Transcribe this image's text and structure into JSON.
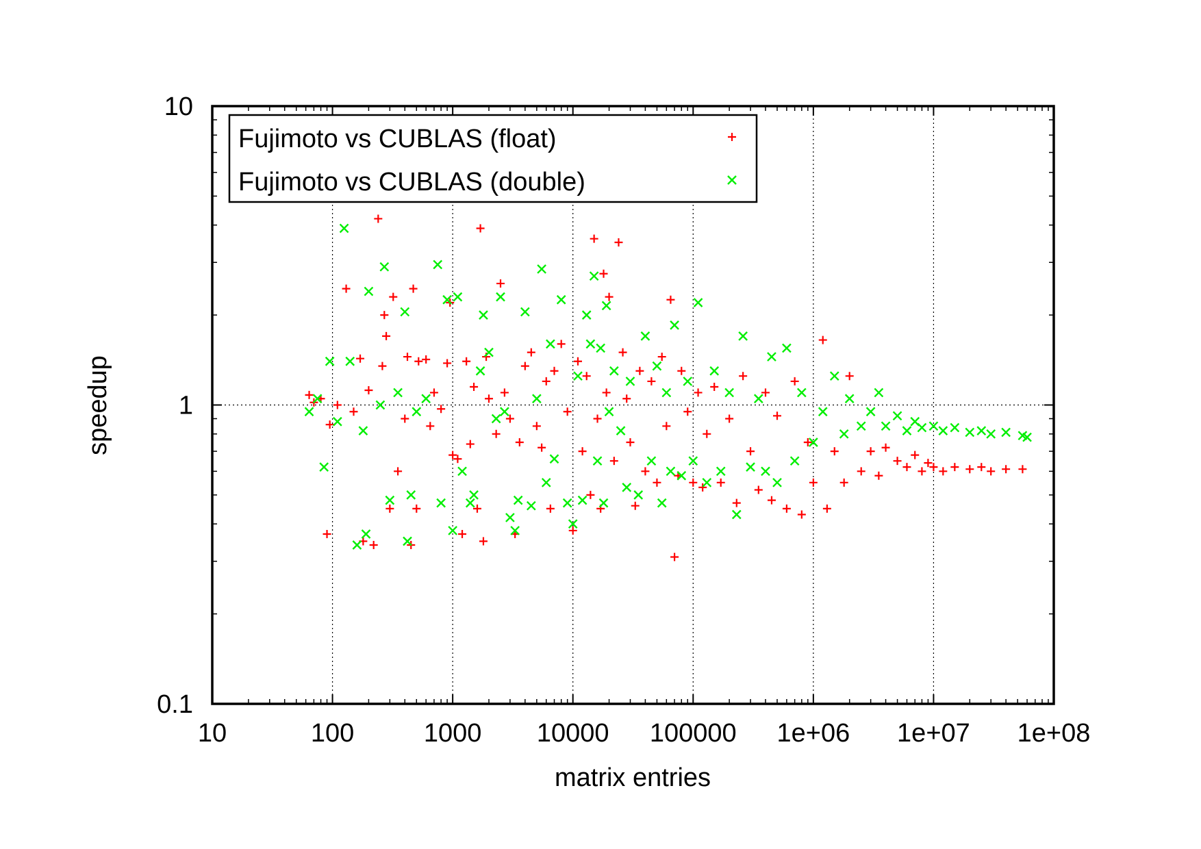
{
  "chart_data": {
    "type": "scatter",
    "title": "",
    "xlabel": "matrix entries",
    "ylabel": "speedup",
    "xscale": "log",
    "yscale": "log",
    "xlim": [
      10,
      100000000
    ],
    "ylim": [
      0.1,
      10
    ],
    "x_tick_labels": [
      "10",
      "100",
      "1000",
      "10000",
      "100000",
      "1e+06",
      "1e+07",
      "1e+08"
    ],
    "x_tick_values": [
      10,
      100,
      1000,
      10000,
      100000,
      1000000,
      10000000,
      100000000
    ],
    "y_tick_labels": [
      "0.1",
      "1",
      "10"
    ],
    "y_tick_values": [
      0.1,
      1,
      10
    ],
    "grid": "dotted lines at major ticks",
    "legend_position": "top-left",
    "series": [
      {
        "name": "Fujimoto vs CUBLAS (float)",
        "marker": "plus",
        "color": "#ff0000",
        "points": [
          [
            64,
            1.08
          ],
          [
            70,
            1.02
          ],
          [
            80,
            1.05
          ],
          [
            90,
            0.37
          ],
          [
            95,
            0.86
          ],
          [
            110,
            1.0
          ],
          [
            130,
            2.45
          ],
          [
            150,
            0.95
          ],
          [
            170,
            1.43
          ],
          [
            180,
            0.35
          ],
          [
            200,
            1.12
          ],
          [
            220,
            0.34
          ],
          [
            240,
            4.2
          ],
          [
            260,
            1.35
          ],
          [
            270,
            2.0
          ],
          [
            280,
            1.7
          ],
          [
            300,
            0.45
          ],
          [
            320,
            2.3
          ],
          [
            350,
            0.6
          ],
          [
            400,
            0.9
          ],
          [
            420,
            1.45
          ],
          [
            450,
            0.34
          ],
          [
            470,
            2.45
          ],
          [
            500,
            0.45
          ],
          [
            520,
            1.4
          ],
          [
            600,
            1.42
          ],
          [
            650,
            0.85
          ],
          [
            700,
            1.1
          ],
          [
            800,
            0.97
          ],
          [
            900,
            1.38
          ],
          [
            950,
            2.2
          ],
          [
            1000,
            0.68
          ],
          [
            1100,
            0.66
          ],
          [
            1200,
            0.37
          ],
          [
            1300,
            1.4
          ],
          [
            1400,
            0.74
          ],
          [
            1500,
            1.15
          ],
          [
            1600,
            0.45
          ],
          [
            1700,
            3.9
          ],
          [
            1800,
            0.35
          ],
          [
            1900,
            1.45
          ],
          [
            2000,
            1.05
          ],
          [
            2300,
            0.8
          ],
          [
            2500,
            2.55
          ],
          [
            2700,
            1.1
          ],
          [
            3000,
            0.9
          ],
          [
            3300,
            0.37
          ],
          [
            3600,
            0.75
          ],
          [
            4000,
            1.35
          ],
          [
            4500,
            1.5
          ],
          [
            5000,
            0.85
          ],
          [
            5500,
            0.72
          ],
          [
            6000,
            1.2
          ],
          [
            6500,
            0.45
          ],
          [
            7000,
            1.3
          ],
          [
            8000,
            1.6
          ],
          [
            9000,
            0.95
          ],
          [
            10000,
            0.38
          ],
          [
            11000,
            1.4
          ],
          [
            12000,
            0.7
          ],
          [
            13000,
            1.25
          ],
          [
            14000,
            0.5
          ],
          [
            15000,
            3.6
          ],
          [
            16000,
            0.9
          ],
          [
            17000,
            0.45
          ],
          [
            18000,
            2.75
          ],
          [
            19000,
            1.1
          ],
          [
            20000,
            2.3
          ],
          [
            22000,
            0.65
          ],
          [
            24000,
            3.5
          ],
          [
            26000,
            1.5
          ],
          [
            28000,
            1.05
          ],
          [
            30000,
            0.75
          ],
          [
            33000,
            0.46
          ],
          [
            36000,
            1.3
          ],
          [
            40000,
            0.6
          ],
          [
            45000,
            1.2
          ],
          [
            50000,
            0.55
          ],
          [
            55000,
            1.45
          ],
          [
            60000,
            0.85
          ],
          [
            65000,
            2.25
          ],
          [
            70000,
            0.31
          ],
          [
            75000,
            0.58
          ],
          [
            80000,
            1.3
          ],
          [
            90000,
            0.95
          ],
          [
            100000,
            0.55
          ],
          [
            110000,
            1.1
          ],
          [
            120000,
            0.53
          ],
          [
            130000,
            0.8
          ],
          [
            150000,
            1.15
          ],
          [
            170000,
            0.55
          ],
          [
            200000,
            0.9
          ],
          [
            230000,
            0.47
          ],
          [
            260000,
            1.25
          ],
          [
            300000,
            0.7
          ],
          [
            350000,
            0.52
          ],
          [
            400000,
            1.1
          ],
          [
            450000,
            0.48
          ],
          [
            500000,
            0.92
          ],
          [
            600000,
            0.45
          ],
          [
            700000,
            1.2
          ],
          [
            800000,
            0.43
          ],
          [
            900000,
            0.75
          ],
          [
            1000000,
            0.55
          ],
          [
            1200000,
            1.65
          ],
          [
            1300000,
            0.45
          ],
          [
            1500000,
            0.7
          ],
          [
            1800000,
            0.55
          ],
          [
            2000000,
            1.25
          ],
          [
            2500000,
            0.6
          ],
          [
            3000000,
            0.7
          ],
          [
            3500000,
            0.58
          ],
          [
            4000000,
            0.72
          ],
          [
            5000000,
            0.65
          ],
          [
            6000000,
            0.62
          ],
          [
            7000000,
            0.68
          ],
          [
            8000000,
            0.6
          ],
          [
            9000000,
            0.64
          ],
          [
            10000000,
            0.62
          ],
          [
            12000000,
            0.6
          ],
          [
            15000000,
            0.62
          ],
          [
            20000000,
            0.61
          ],
          [
            25000000,
            0.62
          ],
          [
            30000000,
            0.6
          ],
          [
            40000000,
            0.61
          ],
          [
            55000000,
            0.61
          ]
        ]
      },
      {
        "name": "Fujimoto vs CUBLAS (double)",
        "marker": "cross",
        "color": "#00ee00",
        "points": [
          [
            64,
            0.95
          ],
          [
            75,
            1.05
          ],
          [
            85,
            0.62
          ],
          [
            95,
            1.4
          ],
          [
            110,
            0.88
          ],
          [
            125,
            3.9
          ],
          [
            140,
            1.4
          ],
          [
            160,
            0.34
          ],
          [
            180,
            0.82
          ],
          [
            190,
            0.37
          ],
          [
            200,
            2.4
          ],
          [
            250,
            1.0
          ],
          [
            270,
            2.9
          ],
          [
            300,
            0.48
          ],
          [
            350,
            1.1
          ],
          [
            400,
            2.05
          ],
          [
            420,
            0.35
          ],
          [
            450,
            0.5
          ],
          [
            500,
            0.95
          ],
          [
            600,
            1.05
          ],
          [
            750,
            2.95
          ],
          [
            800,
            0.47
          ],
          [
            900,
            2.25
          ],
          [
            1000,
            0.38
          ],
          [
            1100,
            2.3
          ],
          [
            1200,
            0.6
          ],
          [
            1400,
            0.47
          ],
          [
            1500,
            0.5
          ],
          [
            1700,
            1.3
          ],
          [
            1800,
            2.0
          ],
          [
            2000,
            1.5
          ],
          [
            2300,
            0.9
          ],
          [
            2500,
            2.3
          ],
          [
            2700,
            0.95
          ],
          [
            3000,
            0.42
          ],
          [
            3300,
            0.38
          ],
          [
            3500,
            0.48
          ],
          [
            4000,
            2.05
          ],
          [
            4500,
            0.46
          ],
          [
            5000,
            1.05
          ],
          [
            5500,
            2.85
          ],
          [
            6000,
            0.55
          ],
          [
            6500,
            1.6
          ],
          [
            7000,
            0.66
          ],
          [
            8000,
            2.25
          ],
          [
            9000,
            0.47
          ],
          [
            10000,
            0.4
          ],
          [
            11000,
            1.25
          ],
          [
            12000,
            0.48
          ],
          [
            13000,
            2.0
          ],
          [
            14000,
            1.6
          ],
          [
            15000,
            2.7
          ],
          [
            16000,
            0.65
          ],
          [
            17000,
            1.55
          ],
          [
            18000,
            0.47
          ],
          [
            19000,
            2.15
          ],
          [
            20000,
            0.95
          ],
          [
            22000,
            1.3
          ],
          [
            25000,
            0.82
          ],
          [
            28000,
            0.53
          ],
          [
            30000,
            1.2
          ],
          [
            35000,
            0.5
          ],
          [
            40000,
            1.7
          ],
          [
            45000,
            0.65
          ],
          [
            50000,
            1.35
          ],
          [
            55000,
            0.47
          ],
          [
            60000,
            1.1
          ],
          [
            65000,
            0.6
          ],
          [
            70000,
            1.85
          ],
          [
            80000,
            0.58
          ],
          [
            90000,
            1.2
          ],
          [
            100000,
            0.65
          ],
          [
            110000,
            2.2
          ],
          [
            130000,
            0.55
          ],
          [
            150000,
            1.3
          ],
          [
            170000,
            0.6
          ],
          [
            200000,
            1.1
          ],
          [
            230000,
            0.43
          ],
          [
            260000,
            1.7
          ],
          [
            300000,
            0.62
          ],
          [
            350000,
            1.05
          ],
          [
            400000,
            0.6
          ],
          [
            450000,
            1.45
          ],
          [
            500000,
            0.55
          ],
          [
            600000,
            1.55
          ],
          [
            700000,
            0.65
          ],
          [
            800000,
            1.1
          ],
          [
            1000000,
            0.75
          ],
          [
            1200000,
            0.95
          ],
          [
            1500000,
            1.25
          ],
          [
            1800000,
            0.8
          ],
          [
            2000000,
            1.05
          ],
          [
            2500000,
            0.85
          ],
          [
            3000000,
            0.95
          ],
          [
            3500000,
            1.1
          ],
          [
            4000000,
            0.85
          ],
          [
            5000000,
            0.92
          ],
          [
            6000000,
            0.82
          ],
          [
            7000000,
            0.88
          ],
          [
            8000000,
            0.84
          ],
          [
            10000000,
            0.85
          ],
          [
            12000000,
            0.82
          ],
          [
            15000000,
            0.84
          ],
          [
            20000000,
            0.81
          ],
          [
            25000000,
            0.82
          ],
          [
            30000000,
            0.8
          ],
          [
            40000000,
            0.81
          ],
          [
            55000000,
            0.79
          ],
          [
            60000000,
            0.78
          ]
        ]
      }
    ]
  }
}
